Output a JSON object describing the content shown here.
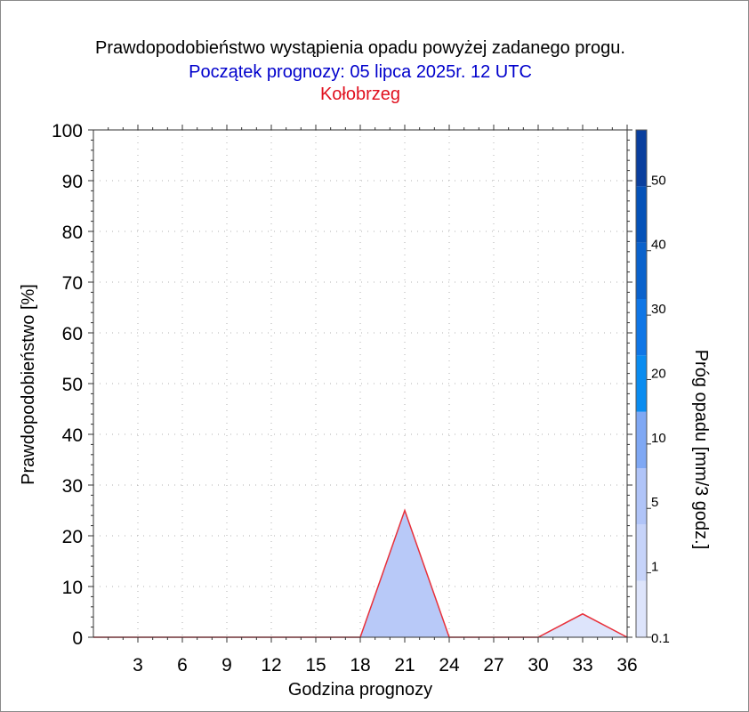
{
  "header": {
    "title": "Prawdopodobieństwo wystąpienia opadu powyżej zadanego progu.",
    "subtitle": "Początek prognozy: 05 lipca 2025r. 12 UTC",
    "location": "Kołobrzeg"
  },
  "chart_data": {
    "type": "area",
    "title": "Prawdopodobieństwo wystąpienia opadu powyżej zadanego progu.",
    "subtitle": "Początek prognozy: 05 lipca 2025r. 12 UTC",
    "location": "Kołobrzeg",
    "xlabel": "Godzina prognozy",
    "ylabel": "Prawdopodobieństwo [%]",
    "xlim": [
      0,
      36
    ],
    "ylim": [
      0,
      100
    ],
    "xticks": [
      3,
      6,
      9,
      12,
      15,
      18,
      21,
      24,
      27,
      30,
      33,
      36
    ],
    "yticks": [
      0,
      10,
      20,
      30,
      40,
      50,
      60,
      70,
      80,
      90,
      100
    ],
    "grid": true,
    "x": [
      0,
      3,
      6,
      9,
      12,
      15,
      18,
      21,
      24,
      27,
      30,
      33,
      36
    ],
    "series": [
      {
        "threshold": 0.1,
        "color": "#dde4fb",
        "values": [
          0,
          0,
          0,
          0,
          0,
          0,
          0,
          25,
          0,
          0,
          0,
          4.6,
          0
        ]
      },
      {
        "threshold": 1,
        "color": "#b8c9f8",
        "values": [
          0,
          0,
          0,
          0,
          0,
          0,
          0,
          25,
          0,
          0,
          0,
          0,
          0
        ]
      }
    ],
    "line_color": "#e8303a",
    "colorbar": {
      "label": "Próg opadu [mm/3 godz.]",
      "tick_labels": [
        "0.1",
        "1",
        "5",
        "10",
        "20",
        "30",
        "40",
        "50"
      ],
      "colors": [
        "#dde4fb",
        "#c6d3f9",
        "#b0c4f8",
        "#7fa8f4",
        "#0a8cf0",
        "#0f76e6",
        "#0a62cc",
        "#0552b8",
        "#0a3f9e"
      ]
    }
  }
}
